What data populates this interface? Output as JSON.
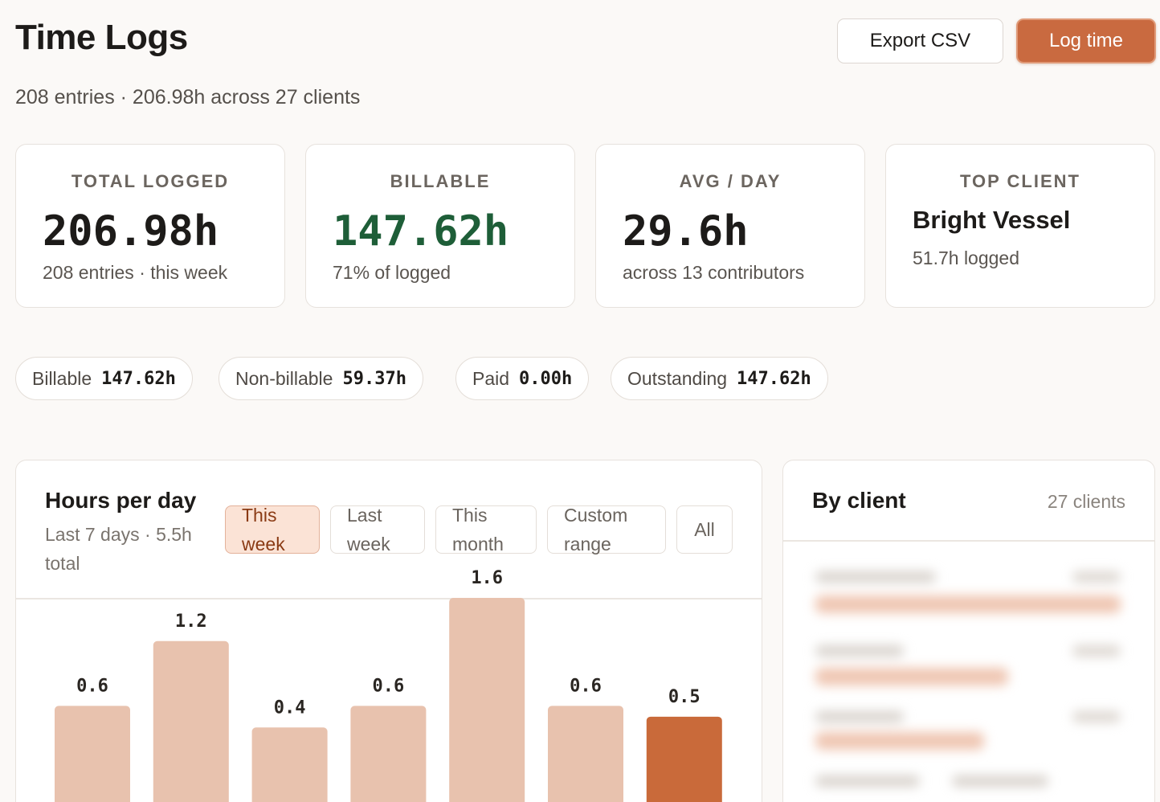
{
  "header": {
    "title": "Time Logs",
    "subtitle": "208 entries · 206.98h across 27 clients",
    "export_label": "Export CSV",
    "log_label": "Log time"
  },
  "stats": [
    {
      "label": "TOTAL LOGGED",
      "value": "206.98h",
      "note": "208 entries · this week"
    },
    {
      "label": "BILLABLE",
      "value": "147.62h",
      "note": "71% of logged"
    },
    {
      "label": "AVG / DAY",
      "value": "29.6h",
      "note": "across 13 contributors"
    },
    {
      "label": "TOP CLIENT",
      "value": "Bright Vessel",
      "note": "51.7h logged"
    }
  ],
  "pills": [
    {
      "label": "Billable",
      "value": "147.62h"
    },
    {
      "label": "Non-billable",
      "value": "59.37h"
    },
    {
      "label": "Paid",
      "value": "0.00h"
    },
    {
      "label": "Outstanding",
      "value": "147.62h"
    }
  ],
  "hours_panel": {
    "title": "Hours per day",
    "subtitle": "Last 7 days · 5.5h total",
    "filters": [
      "This week",
      "Last week",
      "This month",
      "Custom range",
      "All"
    ],
    "active_filter": "This week"
  },
  "chart_data": {
    "type": "bar",
    "values": [
      0.6,
      1.2,
      0.4,
      0.6,
      1.6,
      0.6,
      0.5
    ],
    "data_labels": [
      "0.6",
      "1.2",
      "0.4",
      "0.6",
      "1.6",
      "0.6",
      "0.5"
    ],
    "highlight_index": 6,
    "ylim": [
      0,
      1.6
    ],
    "colors": {
      "bar": "#e8c2ae",
      "highlight": "#c96a3a"
    }
  },
  "client_panel": {
    "title": "By client",
    "count": "27 clients"
  }
}
